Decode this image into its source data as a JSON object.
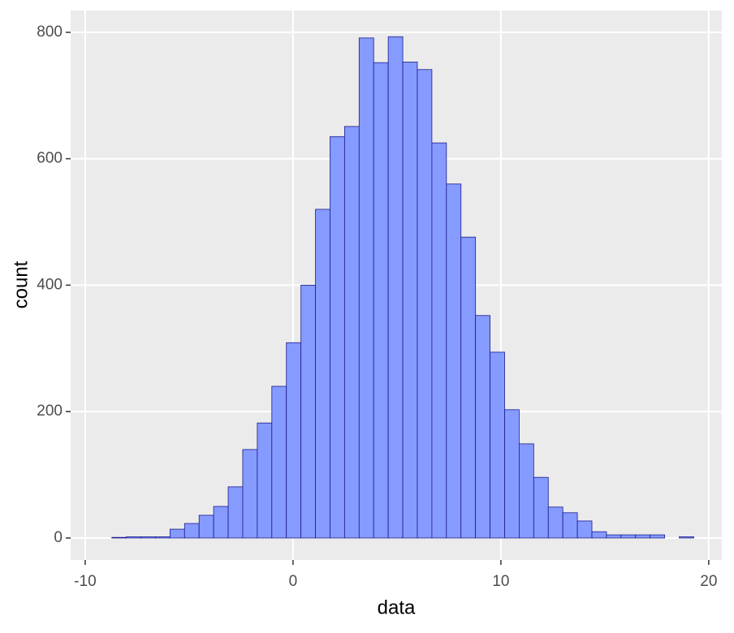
{
  "chart_data": {
    "type": "histogram",
    "x_label": "data",
    "y_label": "count",
    "bins": [
      -8.72,
      -8.02,
      -7.32,
      -6.62,
      -5.92,
      -5.22,
      -4.52,
      -3.82,
      -3.12,
      -2.42,
      -1.72,
      -1.02,
      -0.32,
      0.38,
      1.08,
      1.78,
      2.48,
      3.18,
      3.88,
      4.58,
      5.28,
      5.98,
      6.68,
      7.38,
      8.08,
      8.78,
      9.48,
      10.18,
      10.88,
      11.58,
      12.28,
      12.98,
      13.68,
      14.38,
      15.08,
      15.78,
      16.48,
      17.18,
      17.88,
      18.58,
      19.28
    ],
    "values": [
      1,
      2,
      2,
      2,
      14,
      23,
      36,
      50,
      81,
      140,
      182,
      240,
      309,
      400,
      520,
      635,
      651,
      791,
      752,
      793,
      753,
      741,
      625,
      560,
      476,
      352,
      294,
      203,
      149,
      96,
      49,
      40,
      27,
      10,
      5,
      5,
      5,
      5,
      0,
      2
    ],
    "color": "#869bff",
    "edge_color": "#1a1a8c",
    "xlim": [
      -10.7,
      20.63
    ],
    "ylim": [
      -34.7,
      834.4
    ],
    "xticks": [
      -10,
      0,
      10,
      20
    ],
    "yticks": [
      0,
      200,
      400,
      600,
      800
    ],
    "grid": true
  }
}
